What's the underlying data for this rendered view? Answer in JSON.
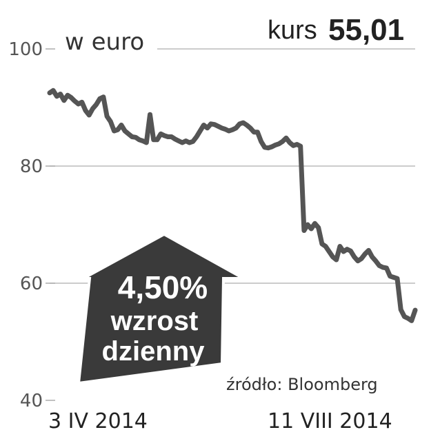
{
  "chart_data": {
    "type": "line",
    "unit_label": "w euro",
    "price_label": "kurs",
    "price_value": "55,01",
    "ylim": [
      40,
      100
    ],
    "yticks": [
      40,
      60,
      80,
      100
    ],
    "ytick_labels": [
      "40",
      "60",
      "80",
      "100"
    ],
    "x_start_label": "3 IV 2014",
    "x_end_label": "11 VIII 2014",
    "source": "źródło: Bloomberg",
    "badge": {
      "value": "4,50%",
      "line1": "wzrost",
      "line2": "dzienny"
    },
    "grid": true,
    "line_color": "#555555",
    "badge_color": "#3a3a3a",
    "values": [
      92.5,
      92.9,
      91.9,
      92.3,
      91.2,
      92.1,
      91.7,
      91.1,
      90.6,
      90.9,
      89.5,
      88.7,
      89.8,
      90.5,
      91.5,
      91.8,
      88.5,
      87.6,
      86.0,
      86.2,
      87.0,
      86.0,
      85.5,
      85.0,
      84.9,
      84.5,
      84.3,
      84.0,
      88.8,
      84.5,
      84.5,
      85.5,
      85.2,
      85.0,
      85.0,
      84.6,
      84.3,
      84.0,
      84.3,
      84.0,
      84.2,
      85.0,
      86.0,
      87.0,
      86.5,
      87.2,
      87.1,
      86.8,
      86.5,
      86.3,
      86.0,
      86.2,
      86.5,
      87.2,
      87.4,
      87.0,
      86.5,
      85.8,
      85.8,
      84.2,
      83.2,
      83.1,
      83.3,
      83.6,
      83.8,
      84.2,
      84.8,
      84.0,
      83.5,
      83.7,
      83.4,
      69.0,
      70.0,
      69.3,
      70.2,
      69.5,
      66.7,
      66.3,
      65.4,
      64.5,
      64.0,
      66.3,
      65.4,
      65.8,
      65.5,
      64.5,
      63.8,
      64.2,
      65.0,
      65.6,
      64.5,
      63.8,
      63.0,
      62.7,
      62.6,
      61.2,
      61.0,
      60.8,
      55.5,
      54.3,
      54.0,
      53.6,
      55.4
    ]
  }
}
